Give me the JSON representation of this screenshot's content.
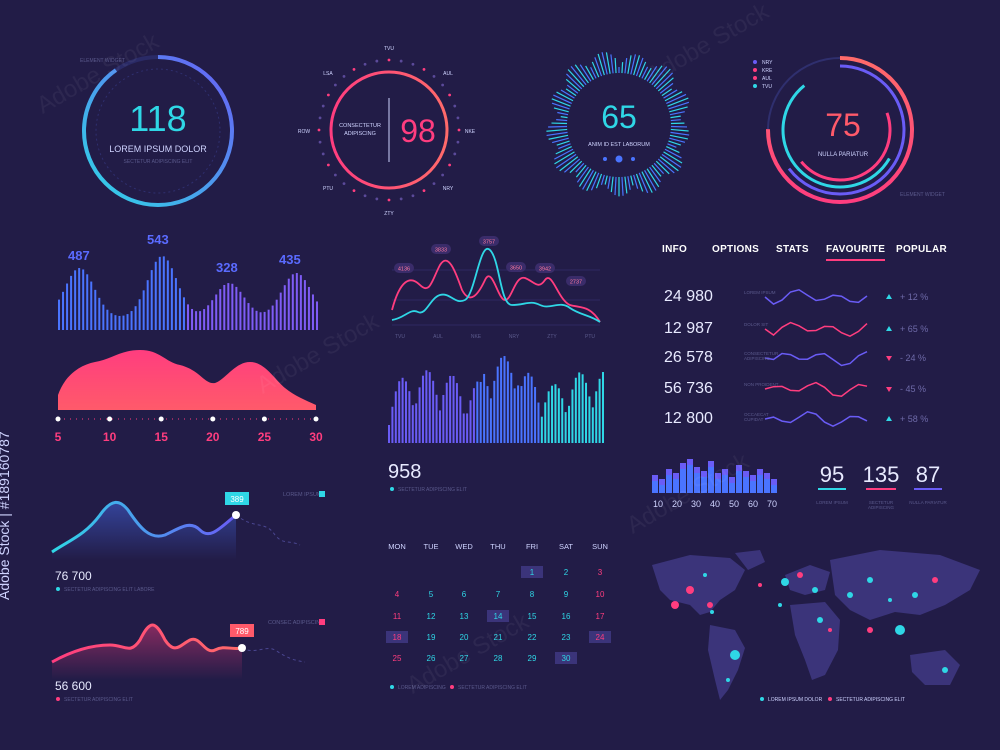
{
  "colors": {
    "bg": "#221c47",
    "cyan": "#2fd7e6",
    "pink": "#ff3d7f",
    "purple": "#6a5cf6",
    "blue": "#4a74ff",
    "map": "#3b347a"
  },
  "gauges": {
    "g1": {
      "value": "118",
      "label": "LOREM IPSUM DOLOR",
      "note": "SECTETUR ADIPISCING ELIT",
      "small_top": "ELEMENT WIDGET"
    },
    "g2": {
      "value": "98",
      "label1": "CONSECTETUR",
      "label2": "ADIPISCING",
      "ticks": [
        "TVU",
        "AUL",
        "NKE",
        "NRY",
        "ZTY",
        "PTU",
        "ROW",
        "LSA"
      ]
    },
    "g3": {
      "value": "65",
      "label": "ANIM ID EST LABORUM"
    },
    "g4": {
      "value": "75",
      "label": "NULLA PARIATUR",
      "legend": [
        "NRY",
        "KRE",
        "AUL",
        "TVU"
      ],
      "note": "ELEMENT WIDGET"
    }
  },
  "wave_chart": {
    "labels": [
      "487",
      "543",
      "328",
      "435"
    ]
  },
  "area_axis": [
    "5",
    "10",
    "15",
    "20",
    "25",
    "30"
  ],
  "line_chart": {
    "labels": [
      "4136",
      "3833",
      "3757",
      "3650",
      "3942",
      "2737"
    ],
    "x_labels": [
      "TVU",
      "AUL",
      "NKE",
      "NRY",
      "ZTY",
      "PTU"
    ]
  },
  "bars_center": {
    "value": "958",
    "caption": "SECTETUR ADIPISCING ELIT"
  },
  "curve1": {
    "value": "76 700",
    "tag": "389",
    "legend": "LOREM IPSUM",
    "caption": "SECTETUR ADIPISCING ELIT LABORE"
  },
  "curve2": {
    "value": "56 600",
    "tag": "789",
    "legend": "CONSEC ADIPISCING",
    "caption": "SECTETUR ADIPISCING ELIT"
  },
  "tabs": [
    "INFO",
    "OPTIONS",
    "STATS",
    "FAVOURITE",
    "POPULAR"
  ],
  "active_tab": "FAVOURITE",
  "stats": [
    {
      "value": "24 980",
      "sub": "LOREM IPSUM",
      "pct": "+ 12 %",
      "dir": "up",
      "color": "#6a5cf6"
    },
    {
      "value": "12 987",
      "sub": "DOLOR SIT",
      "pct": "+ 65 %",
      "dir": "up",
      "color": "#ff3d7f"
    },
    {
      "value": "26 578",
      "sub": "CONSECTETUR ADIPISCING",
      "pct": "- 24 %",
      "dir": "down",
      "color": "#6a5cf6"
    },
    {
      "value": "56 736",
      "sub": "NON PROIDENT",
      "pct": "- 45 %",
      "dir": "down",
      "color": "#ff3d7f"
    },
    {
      "value": "12 800",
      "sub": "OCCAECAT CUPIDAT",
      "pct": "+ 58 %",
      "dir": "up",
      "color": "#6a5cf6"
    }
  ],
  "small_bars": {
    "axis": [
      "10",
      "20",
      "30",
      "40",
      "50",
      "60",
      "70"
    ]
  },
  "kpis": [
    {
      "value": "95",
      "sub": "LOREM IPSUM"
    },
    {
      "value": "135",
      "sub": "SECTETUR ADIPISCING"
    },
    {
      "value": "87",
      "sub": "NULLA PARIATUR"
    }
  ],
  "calendar": {
    "days": [
      "MON",
      "TUE",
      "WED",
      "THU",
      "FRI",
      "SAT",
      "SUN"
    ],
    "rows": [
      [
        "",
        "",
        "",
        "",
        "1",
        "2",
        "3"
      ],
      [
        "4",
        "5",
        "6",
        "7",
        "8",
        "9",
        "10"
      ],
      [
        "11",
        "12",
        "13",
        "14",
        "15",
        "16",
        "17"
      ],
      [
        "18",
        "19",
        "20",
        "21",
        "22",
        "23",
        "24"
      ],
      [
        "25",
        "26",
        "27",
        "28",
        "29",
        "30",
        ""
      ]
    ],
    "highlight": [
      "1",
      "14",
      "18",
      "24",
      "30"
    ],
    "legend": [
      "LOREM ADIPISCING",
      "SECTETUR ADIPISCING ELIT"
    ]
  },
  "map": {
    "legend": [
      "LOREM IPSUM DOLOR",
      "SECTETUR ADIPISCING ELIT"
    ]
  },
  "watermark": "Adobe Stock",
  "side_id": "Adobe Stock | #189160787"
}
